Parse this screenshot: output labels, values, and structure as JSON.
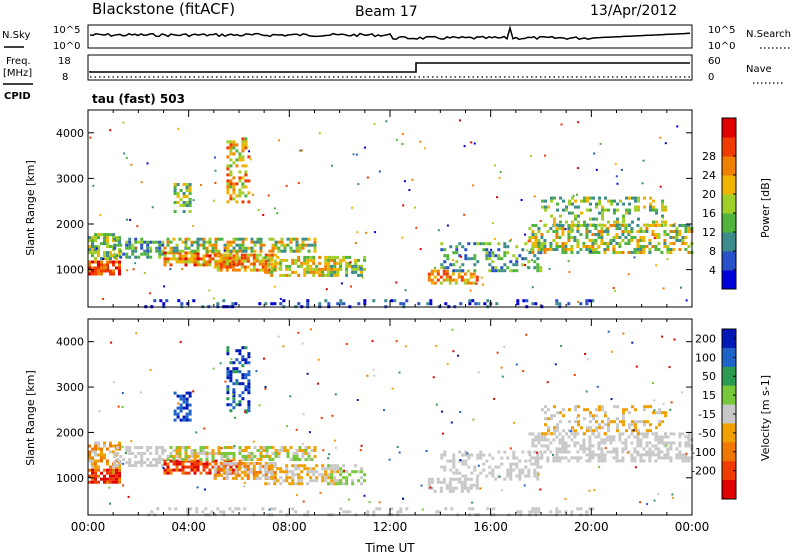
{
  "header": {
    "station": "Blackstone (fitACF)",
    "beam": "Beam 17",
    "date": "13/Apr/2012"
  },
  "noise_panel": {
    "left_label": "N.Sky",
    "right_label": "N.Search",
    "left_ticks": [
      "10^5",
      "10^0"
    ],
    "right_ticks": [
      "10^5",
      "10^0"
    ]
  },
  "freq_panel": {
    "left_label_line1": "Freq.",
    "left_label_line2": "[MHz]",
    "cpid_label": "CPID",
    "right_label": "Nave",
    "left_ticks": [
      "18",
      "8"
    ],
    "right_ticks": [
      "60",
      "0"
    ],
    "cpid_text": "tau (fast) 503"
  },
  "chart_data": [
    {
      "type": "heatmap",
      "title": "",
      "xlabel": "",
      "ylabel": "Slant Range [km]",
      "x_range_hours": [
        0,
        24
      ],
      "ylim": [
        180,
        4500
      ],
      "yticks": [
        "1000",
        "2000",
        "3000",
        "4000"
      ],
      "colorbar": {
        "label": "Power [dB]",
        "ticks": [
          "4",
          "8",
          "12",
          "16",
          "20",
          "24",
          "28"
        ],
        "colors": [
          "#0000d8",
          "#2850c8",
          "#3c8c8c",
          "#50b43c",
          "#a0d028",
          "#f0b400",
          "#f08000",
          "#f03c00",
          "#e00000"
        ]
      }
    },
    {
      "type": "heatmap",
      "title": "",
      "xlabel": "Time UT",
      "ylabel": "Slant Range [km]",
      "x_range_hours": [
        0,
        24
      ],
      "ylim": [
        180,
        4500
      ],
      "yticks": [
        "1000",
        "2000",
        "3000",
        "4000"
      ],
      "xticks": [
        "00:00",
        "04:00",
        "08:00",
        "12:00",
        "16:00",
        "20:00",
        "00:00"
      ],
      "colorbar": {
        "label": "Velocity [m s-1]",
        "ticks": [
          "200",
          "100",
          "50",
          "15",
          "-15",
          "-50",
          "-100",
          "-200"
        ],
        "colors": [
          "#0018b4",
          "#1e64c8",
          "#2c9a50",
          "#78c83c",
          "#c8c8c8",
          "#f0a000",
          "#f07800",
          "#f03c00",
          "#e00000"
        ]
      }
    }
  ]
}
